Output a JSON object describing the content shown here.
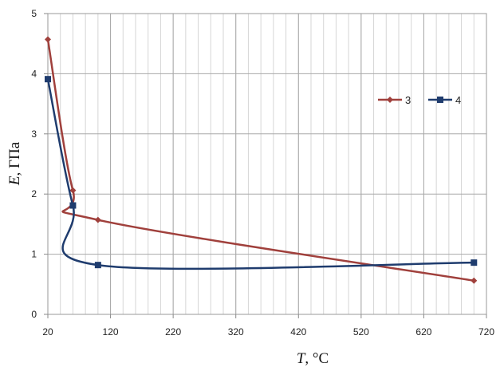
{
  "chart_data": {
    "type": "line",
    "x_label_symbol": "T",
    "x_label_unit": ", °C",
    "y_label_symbol": "E",
    "y_label_unit": ", ГПа",
    "xlim": [
      20,
      720
    ],
    "ylim": [
      0,
      5
    ],
    "x_ticks": [
      20,
      120,
      220,
      320,
      420,
      520,
      620,
      720
    ],
    "x_tick_labels": [
      "20",
      "120",
      "220",
      "320",
      "420",
      "520",
      "620",
      "720"
    ],
    "y_ticks": [
      0,
      1,
      2,
      3,
      4,
      5
    ],
    "y_tick_labels": [
      "0",
      "1",
      "2",
      "3",
      "4",
      "5"
    ],
    "x_minor_step": 20,
    "grid": true,
    "legend_position": "right",
    "smooth": true,
    "series": [
      {
        "name": "3",
        "color": "#a0403c",
        "marker": "diamond",
        "points": [
          [
            20,
            4.57
          ],
          [
            60,
            2.06
          ],
          [
            100,
            1.57
          ],
          [
            700,
            0.56
          ]
        ]
      },
      {
        "name": "4",
        "color": "#1f3c6e",
        "marker": "square",
        "points": [
          [
            20,
            3.91
          ],
          [
            60,
            1.81
          ],
          [
            100,
            0.82
          ],
          [
            700,
            0.86
          ]
        ]
      }
    ]
  }
}
